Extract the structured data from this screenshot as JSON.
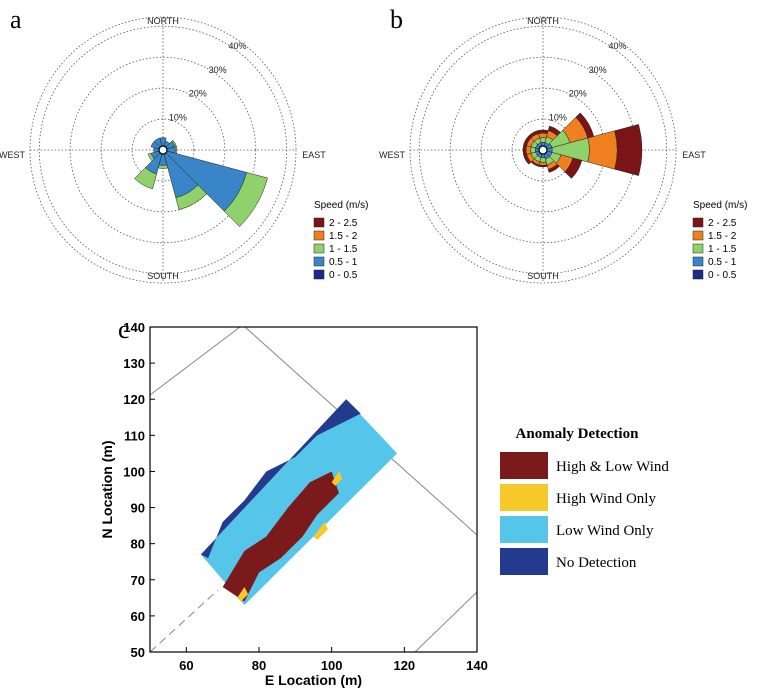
{
  "chart_data": [
    {
      "type": "windrose",
      "panel": "a",
      "directions": [
        0,
        30,
        60,
        90,
        120,
        150,
        180,
        210,
        240,
        270,
        300,
        330
      ],
      "direction_labels": [
        "NORTH",
        "EAST",
        "SOUTH",
        "WEST"
      ],
      "rlim": [
        0,
        43
      ],
      "rticks": [
        {
          "value": 10,
          "label": "10%"
        },
        {
          "value": 20,
          "label": "20%"
        },
        {
          "value": 30,
          "label": "30%"
        },
        {
          "value": 40,
          "label": "40%"
        }
      ],
      "legend_title": "Speed (m/s)",
      "series": [
        {
          "name": "0 - 0.5",
          "color": "#1d2a87",
          "values": [
            1,
            1,
            1,
            1,
            1,
            1,
            1,
            1,
            1,
            1,
            1,
            1
          ]
        },
        {
          "name": "0.5 - 1",
          "color": "#3a84c8",
          "values": [
            3,
            2,
            3,
            3,
            27,
            15,
            4,
            7,
            3,
            2,
            3,
            3
          ]
        },
        {
          "name": "1 - 1.5",
          "color": "#8fd16a",
          "values": [
            0,
            0,
            0.5,
            0.5,
            7,
            4,
            1,
            5,
            1,
            0,
            0,
            0
          ]
        },
        {
          "name": "1.5 - 2",
          "color": "#f07f1f",
          "values": [
            0,
            0,
            0,
            0,
            0,
            0,
            0,
            0,
            0,
            0,
            0,
            0
          ]
        },
        {
          "name": "2 - 2.5",
          "color": "#7b1416",
          "values": [
            0,
            0,
            0,
            0,
            0,
            0,
            0,
            0,
            0,
            0,
            0,
            0
          ]
        }
      ]
    },
    {
      "type": "windrose",
      "panel": "b",
      "directions": [
        0,
        30,
        60,
        90,
        120,
        150,
        180,
        210,
        240,
        270,
        300,
        330
      ],
      "direction_labels": [
        "NORTH",
        "EAST",
        "SOUTH",
        "WEST"
      ],
      "rlim": [
        0,
        43
      ],
      "rticks": [
        {
          "value": 10,
          "label": "10%"
        },
        {
          "value": 20,
          "label": "20%"
        },
        {
          "value": 30,
          "label": "30%"
        },
        {
          "value": 40,
          "label": "40%"
        }
      ],
      "legend_title": "Speed (m/s)",
      "series": [
        {
          "name": "0 - 0.5",
          "color": "#1d2a87",
          "values": [
            1,
            1,
            1,
            1,
            1,
            1,
            1,
            1,
            1,
            1,
            1,
            1
          ]
        },
        {
          "name": "0.5 - 1",
          "color": "#3a84c8",
          "values": [
            1.5,
            1.5,
            2,
            2,
            2,
            2,
            1.5,
            1.5,
            1.5,
            1.5,
            1.5,
            1.5
          ]
        },
        {
          "name": "1 - 1.5",
          "color": "#8fd16a",
          "values": [
            1.5,
            2,
            6,
            12,
            3,
            2,
            1.5,
            1.5,
            1.5,
            1.5,
            1.5,
            1.5
          ]
        },
        {
          "name": "1.5 - 2",
          "color": "#f07f1f",
          "values": [
            1.5,
            2,
            6,
            9,
            4,
            1.5,
            1,
            1,
            1.5,
            1.5,
            1.5,
            1.5
          ]
        },
        {
          "name": "2 - 2.5",
          "color": "#7b1416",
          "values": [
            1,
            1.5,
            2,
            8,
            3,
            1,
            0.5,
            0.5,
            1,
            1,
            1,
            1
          ]
        }
      ]
    },
    {
      "type": "map",
      "panel": "c",
      "xlabel": "E Location (m)",
      "ylabel": "N Location (m)",
      "xlim": [
        50,
        140
      ],
      "ylim": [
        50,
        140
      ],
      "xticks": [
        60,
        80,
        100,
        120,
        140
      ],
      "yticks": [
        50,
        60,
        70,
        80,
        90,
        100,
        110,
        120,
        130,
        140
      ],
      "legend_title": "Anomaly Detection",
      "classes": [
        {
          "name": "High & Low Wind",
          "color": "#7b1a1a"
        },
        {
          "name": "High Wind Only",
          "color": "#f5c92a"
        },
        {
          "name": "Low Wind Only",
          "color": "#56c5ea"
        },
        {
          "name": "No Detection",
          "color": "#233a8f"
        }
      ],
      "regions": [
        {
          "class": 2,
          "polygon": [
            [
              64,
              77
            ],
            [
              104,
              120
            ],
            [
              118,
              105
            ],
            [
              76,
              63
            ]
          ]
        },
        {
          "class": 3,
          "polygon": [
            [
              64,
              77
            ],
            [
              104,
              120
            ],
            [
              108,
              116
            ],
            [
              96,
              110
            ],
            [
              90,
              104
            ],
            [
              82,
              100
            ],
            [
              76,
              92
            ],
            [
              70,
              86
            ],
            [
              66,
              76
            ]
          ]
        },
        {
          "class": 0,
          "polygon": [
            [
              70,
              68
            ],
            [
              76,
              78
            ],
            [
              82,
              82
            ],
            [
              88,
              90
            ],
            [
              94,
              97
            ],
            [
              100,
              100
            ],
            [
              102,
              94
            ],
            [
              96,
              88
            ],
            [
              92,
              82
            ],
            [
              86,
              76
            ],
            [
              80,
              72
            ],
            [
              76,
              64
            ]
          ]
        },
        {
          "class": 1,
          "polygon": [
            [
              95,
              82
            ],
            [
              98,
              86
            ],
            [
              99,
              84
            ],
            [
              96,
              81
            ]
          ]
        },
        {
          "class": 1,
          "polygon": [
            [
              100,
              97
            ],
            [
              102,
              100
            ],
            [
              103,
              98
            ],
            [
              101,
              96
            ]
          ]
        },
        {
          "class": 1,
          "polygon": [
            [
              74,
              65
            ],
            [
              76,
              68
            ],
            [
              77,
              66
            ],
            [
              75,
              64
            ]
          ]
        }
      ]
    }
  ]
}
